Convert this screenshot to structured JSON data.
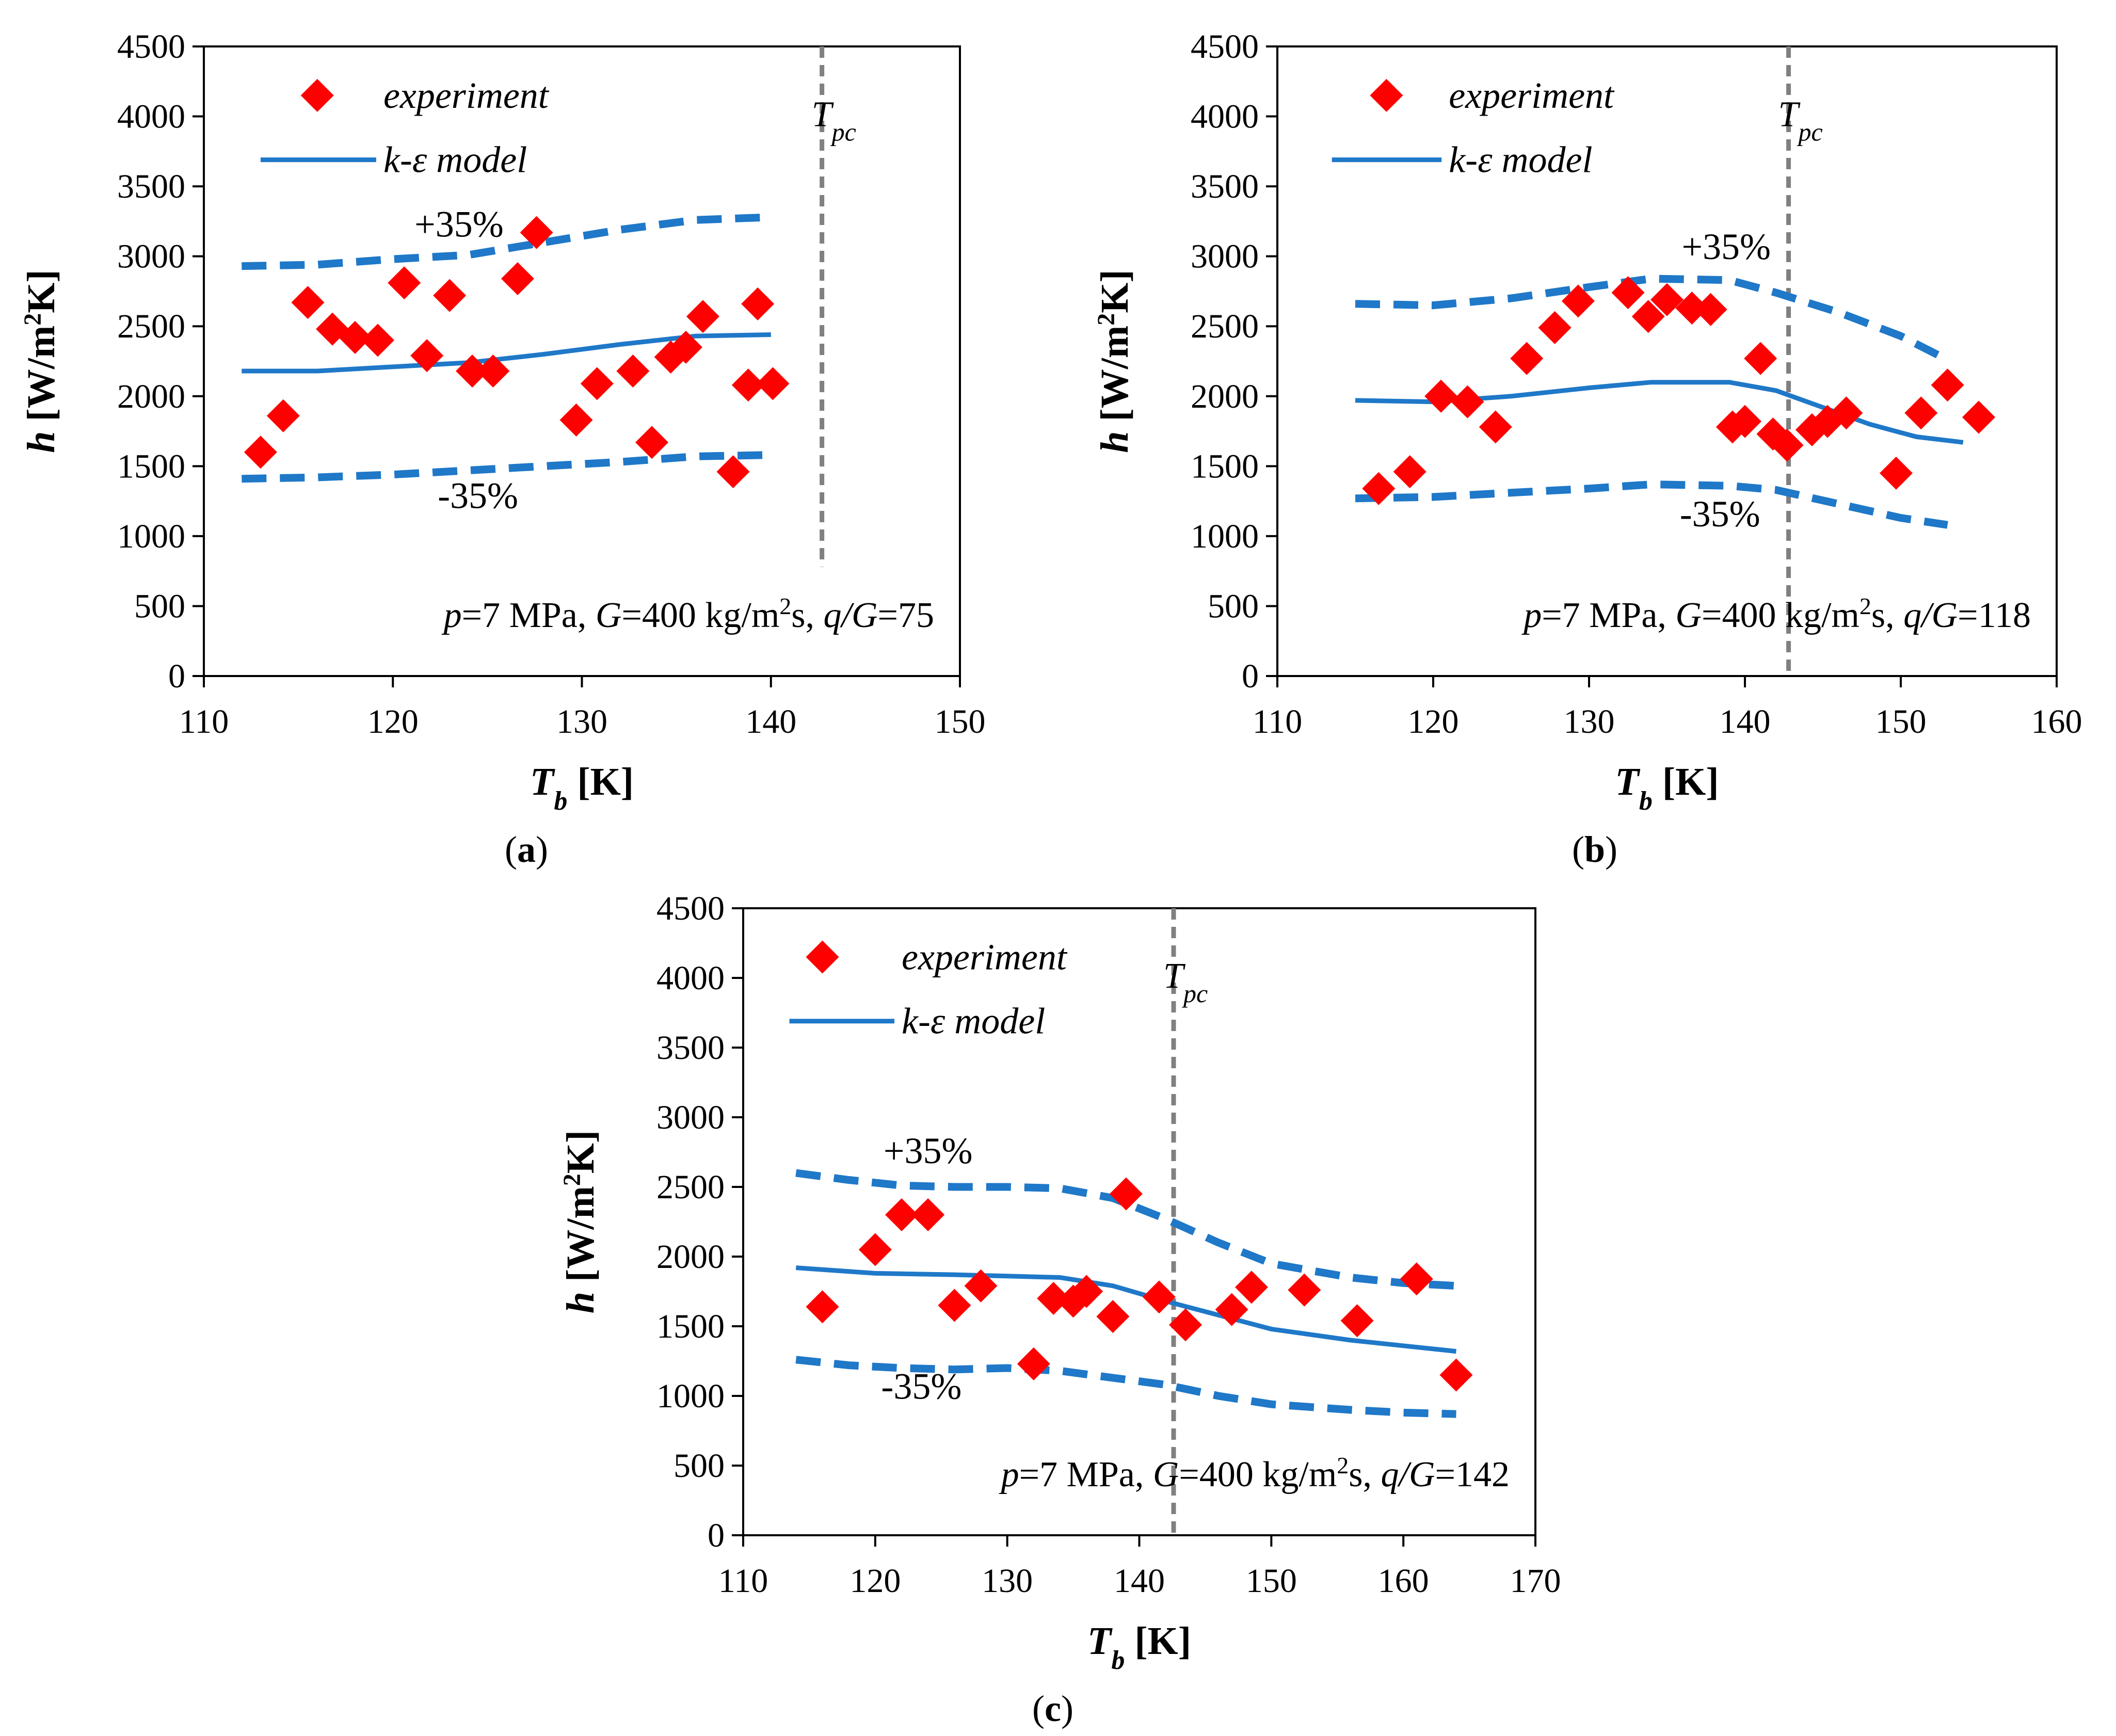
{
  "legend": {
    "experiment": "experiment",
    "model": "k-ε model"
  },
  "axis_text": {
    "y_main": "h",
    "y_unit": "[W/m",
    "y_sup": "2",
    "y_end": "K]",
    "x_main": "T",
    "x_sub": "b",
    "x_unit": "[K]",
    "tpc_main": "T",
    "tpc_sub": "pc",
    "plus": "+35%",
    "minus": "-35%"
  },
  "colors": {
    "experiment": "#ff0000",
    "model": "#1f78c8",
    "tpc": "#808080"
  },
  "chart_data": [
    {
      "id": "a",
      "label": "a",
      "type": "scatter",
      "xlim": [
        110,
        150
      ],
      "ylim": [
        0,
        4500
      ],
      "xticks": [
        110,
        120,
        130,
        140,
        150
      ],
      "yticks": [
        0,
        500,
        1000,
        1500,
        2000,
        2500,
        3000,
        3500,
        4000,
        4500
      ],
      "tpc": 142.7,
      "note": {
        "p_var": "p",
        "p_val": "=7 MPa, ",
        "g_var": "G",
        "g_val": "=400 kg/m",
        "g_sup": "2",
        "g_unit": "s, ",
        "qg_var": "q/G",
        "qg_val": "=75"
      },
      "experiment": [
        [
          113,
          1600
        ],
        [
          114.2,
          1860
        ],
        [
          115.5,
          2670
        ],
        [
          116.8,
          2480
        ],
        [
          118,
          2420
        ],
        [
          119.2,
          2400
        ],
        [
          120.6,
          2810
        ],
        [
          121.8,
          2290
        ],
        [
          123,
          2720
        ],
        [
          124.2,
          2180
        ],
        [
          125.3,
          2180
        ],
        [
          126.6,
          2840
        ],
        [
          127.6,
          3170
        ],
        [
          129.7,
          1830
        ],
        [
          130.8,
          2090
        ],
        [
          132.7,
          2180
        ],
        [
          133.7,
          1670
        ],
        [
          134.7,
          2280
        ],
        [
          135.5,
          2350
        ],
        [
          136.4,
          2570
        ],
        [
          138,
          1460
        ],
        [
          138.8,
          2080
        ],
        [
          139.3,
          2660
        ],
        [
          140.1,
          2090
        ]
      ],
      "model": [
        [
          112,
          2180
        ],
        [
          116,
          2180
        ],
        [
          120,
          2210
        ],
        [
          124,
          2240
        ],
        [
          128,
          2300
        ],
        [
          132,
          2370
        ],
        [
          136,
          2430
        ],
        [
          140,
          2440
        ]
      ],
      "band_plus": [
        [
          112,
          2930
        ],
        [
          116,
          2940
        ],
        [
          120,
          2980
        ],
        [
          124,
          3010
        ],
        [
          128,
          3100
        ],
        [
          132,
          3190
        ],
        [
          136,
          3260
        ],
        [
          140,
          3280
        ]
      ],
      "band_minus": [
        [
          112,
          1410
        ],
        [
          116,
          1420
        ],
        [
          120,
          1440
        ],
        [
          124,
          1470
        ],
        [
          128,
          1500
        ],
        [
          132,
          1530
        ],
        [
          136,
          1570
        ],
        [
          140,
          1580
        ]
      ],
      "band_label_pos": {
        "plus": [
          123.5,
          3140
        ],
        "minus": [
          124.5,
          1200
        ]
      }
    },
    {
      "id": "b",
      "label": "b",
      "type": "scatter",
      "xlim": [
        110,
        160
      ],
      "ylim": [
        0,
        4500
      ],
      "xticks": [
        110,
        120,
        130,
        140,
        150,
        160
      ],
      "yticks": [
        0,
        500,
        1000,
        1500,
        2000,
        2500,
        3000,
        3500,
        4000,
        4500
      ],
      "tpc": 142.8,
      "note": {
        "p_var": "p",
        "p_val": "=7 MPa, ",
        "g_var": "G",
        "g_val": "=400 kg/m",
        "g_sup": "2",
        "g_unit": "s, ",
        "qg_var": "q/G",
        "qg_val": "=118"
      },
      "experiment": [
        [
          116.5,
          1340
        ],
        [
          118.5,
          1460
        ],
        [
          120.5,
          2000
        ],
        [
          122.2,
          1960
        ],
        [
          124,
          1780
        ],
        [
          126,
          2270
        ],
        [
          127.8,
          2490
        ],
        [
          129.3,
          2680
        ],
        [
          132.5,
          2740
        ],
        [
          133.8,
          2570
        ],
        [
          135,
          2690
        ],
        [
          136.6,
          2630
        ],
        [
          137.8,
          2620
        ],
        [
          139.2,
          1780
        ],
        [
          140,
          1820
        ],
        [
          141,
          2270
        ],
        [
          141.8,
          1730
        ],
        [
          142.7,
          1650
        ],
        [
          144.3,
          1760
        ],
        [
          145.3,
          1820
        ],
        [
          146.5,
          1880
        ],
        [
          149.7,
          1450
        ],
        [
          151.3,
          1880
        ],
        [
          153,
          2080
        ],
        [
          155,
          1850
        ]
      ],
      "model": [
        [
          115,
          1970
        ],
        [
          120,
          1960
        ],
        [
          125,
          2000
        ],
        [
          130,
          2060
        ],
        [
          134,
          2100
        ],
        [
          139,
          2100
        ],
        [
          142,
          2040
        ],
        [
          145,
          1920
        ],
        [
          148,
          1800
        ],
        [
          151,
          1710
        ],
        [
          154,
          1670
        ]
      ],
      "band_plus": [
        [
          115,
          2660
        ],
        [
          120,
          2650
        ],
        [
          125,
          2700
        ],
        [
          130,
          2780
        ],
        [
          134,
          2840
        ],
        [
          139,
          2830
        ],
        [
          142,
          2740
        ],
        [
          146,
          2600
        ],
        [
          150,
          2430
        ],
        [
          153,
          2260
        ]
      ],
      "band_minus": [
        [
          115,
          1270
        ],
        [
          120,
          1280
        ],
        [
          125,
          1310
        ],
        [
          130,
          1340
        ],
        [
          134,
          1370
        ],
        [
          139,
          1360
        ],
        [
          142,
          1330
        ],
        [
          146,
          1230
        ],
        [
          150,
          1130
        ],
        [
          153,
          1080
        ]
      ],
      "band_label_pos": {
        "plus": [
          138.8,
          2980
        ],
        "minus": [
          138.4,
          1070
        ]
      }
    },
    {
      "id": "c",
      "label": "c",
      "type": "scatter",
      "xlim": [
        110,
        170
      ],
      "ylim": [
        0,
        4500
      ],
      "xticks": [
        110,
        120,
        130,
        140,
        150,
        160,
        170
      ],
      "yticks": [
        0,
        500,
        1000,
        1500,
        2000,
        2500,
        3000,
        3500,
        4000,
        4500
      ],
      "tpc": 142.6,
      "note": {
        "p_var": "p",
        "p_val": "=7 MPa, ",
        "g_var": "G",
        "g_val": "=400 kg/m",
        "g_sup": "2",
        "g_unit": "s, ",
        "qg_var": "q/G",
        "qg_val": "=142"
      },
      "experiment": [
        [
          116,
          1640
        ],
        [
          120,
          2050
        ],
        [
          122,
          2300
        ],
        [
          124,
          2300
        ],
        [
          126,
          1650
        ],
        [
          128,
          1790
        ],
        [
          132,
          1230
        ],
        [
          133.5,
          1700
        ],
        [
          135,
          1680
        ],
        [
          136,
          1750
        ],
        [
          138,
          1570
        ],
        [
          139,
          2450
        ],
        [
          141.5,
          1710
        ],
        [
          143.5,
          1510
        ],
        [
          147,
          1620
        ],
        [
          148.5,
          1780
        ],
        [
          152.5,
          1760
        ],
        [
          156.5,
          1540
        ],
        [
          161,
          1840
        ],
        [
          164,
          1150
        ]
      ],
      "model": [
        [
          114,
          1920
        ],
        [
          120,
          1880
        ],
        [
          126,
          1870
        ],
        [
          130,
          1860
        ],
        [
          134,
          1850
        ],
        [
          138,
          1790
        ],
        [
          142,
          1680
        ],
        [
          146,
          1580
        ],
        [
          150,
          1480
        ],
        [
          156,
          1400
        ],
        [
          160,
          1360
        ],
        [
          164,
          1320
        ]
      ],
      "band_plus": [
        [
          114,
          2600
        ],
        [
          118,
          2550
        ],
        [
          122,
          2510
        ],
        [
          126,
          2500
        ],
        [
          130,
          2500
        ],
        [
          134,
          2490
        ],
        [
          138,
          2420
        ],
        [
          142,
          2270
        ],
        [
          146,
          2100
        ],
        [
          150,
          1950
        ],
        [
          156,
          1850
        ],
        [
          160,
          1810
        ],
        [
          164,
          1790
        ]
      ],
      "band_minus": [
        [
          114,
          1260
        ],
        [
          118,
          1220
        ],
        [
          122,
          1200
        ],
        [
          126,
          1190
        ],
        [
          130,
          1200
        ],
        [
          134,
          1180
        ],
        [
          138,
          1130
        ],
        [
          142,
          1080
        ],
        [
          146,
          1000
        ],
        [
          150,
          940
        ],
        [
          156,
          900
        ],
        [
          160,
          880
        ],
        [
          164,
          870
        ]
      ],
      "band_label_pos": {
        "plus": [
          124,
          2670
        ],
        "minus": [
          123.5,
          980
        ]
      }
    }
  ],
  "panel_legend_pos": {
    "a": {
      "marker": [
        116,
        4150
      ],
      "line": [
        113,
        3690
      ],
      "text_x": 119.5
    },
    "b": {
      "marker": [
        117,
        4150
      ],
      "line": [
        113.5,
        3690
      ],
      "text_x": 121
    },
    "c": {
      "marker": [
        116,
        4150
      ],
      "line": [
        113.5,
        3690
      ],
      "text_x": 122
    }
  }
}
